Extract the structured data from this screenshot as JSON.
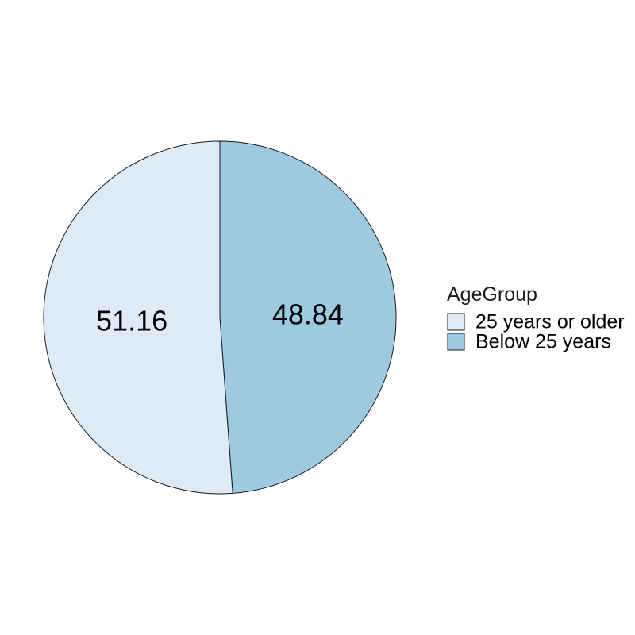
{
  "chart_data": {
    "type": "pie",
    "title": "",
    "legend_title": "AgeGroup",
    "legend_position": "right",
    "slices": [
      {
        "label": "Below 25 years",
        "value": 48.84,
        "display": "48.84",
        "color": "#9ECAE1"
      },
      {
        "label": "25 years or older",
        "value": 51.16,
        "display": "51.16",
        "color": "#DEEBF7"
      }
    ],
    "legend_entries": [
      {
        "label": "25 years or older",
        "color": "#DEEBF7"
      },
      {
        "label": "Below 25 years",
        "color": "#9ECAE1"
      }
    ]
  }
}
